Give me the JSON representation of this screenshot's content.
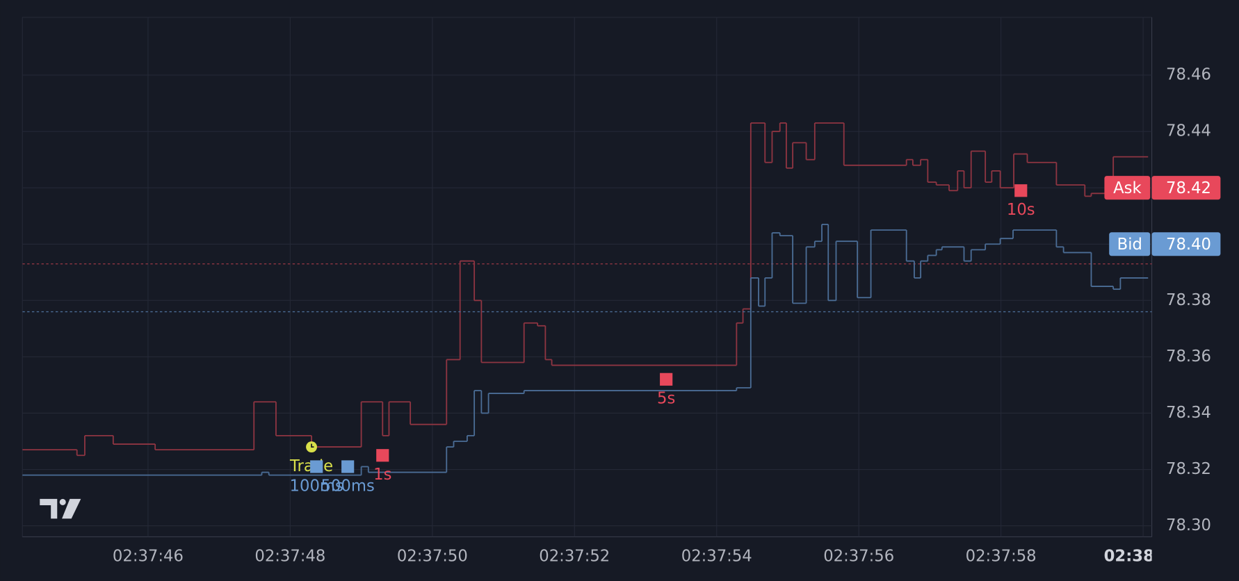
{
  "chart_data": {
    "type": "step",
    "xlim": [
      44.233,
      60.122
    ],
    "ylim": [
      78.2961,
      78.4805
    ],
    "xticks": [
      {
        "value": 46,
        "label": "02:37:46"
      },
      {
        "value": 48,
        "label": "02:37:48"
      },
      {
        "value": 50,
        "label": "02:37:50"
      },
      {
        "value": 52,
        "label": "02:37:52"
      },
      {
        "value": 54,
        "label": "02:37:54"
      },
      {
        "value": 56,
        "label": "02:37:56"
      },
      {
        "value": 58,
        "label": "02:37:58"
      },
      {
        "value": 60,
        "label": "02:38:00",
        "bold": true
      }
    ],
    "yticks": [
      {
        "value": 78.3,
        "label": "78.30"
      },
      78.32,
      78.34,
      78.36,
      78.38,
      {
        "value": 78.4,
        "label": "78.40"
      },
      78.42,
      78.44,
      78.46
    ],
    "grid": true,
    "series": [
      {
        "name": "Ask",
        "color": "#e8485b",
        "line_color": "#8f3542",
        "x": [
          44.23,
          45.0,
          45.11,
          45.51,
          46.1,
          47.49,
          47.8,
          48.3,
          49.0,
          49.3,
          49.39,
          49.69,
          50.2,
          50.39,
          50.59,
          50.69,
          51.29,
          51.48,
          51.59,
          51.68,
          54.28,
          54.37,
          54.48,
          54.68,
          54.78,
          54.89,
          54.98,
          55.07,
          55.26,
          55.38,
          55.79,
          56.67,
          56.76,
          56.87,
          56.97,
          57.09,
          57.27,
          57.39,
          57.48,
          57.58,
          57.78,
          57.87,
          57.99,
          58.18,
          58.37,
          58.78,
          59.18,
          59.27,
          59.58,
          60.07
        ],
        "values": [
          78.327,
          78.325,
          78.332,
          78.329,
          78.327,
          78.344,
          78.332,
          78.328,
          78.344,
          78.332,
          78.344,
          78.336,
          78.359,
          78.394,
          78.38,
          78.358,
          78.372,
          78.371,
          78.359,
          78.357,
          78.372,
          78.377,
          78.443,
          78.429,
          78.44,
          78.443,
          78.427,
          78.436,
          78.43,
          78.443,
          78.428,
          78.43,
          78.428,
          78.43,
          78.422,
          78.421,
          78.419,
          78.426,
          78.42,
          78.433,
          78.422,
          78.426,
          78.42,
          78.432,
          78.429,
          78.421,
          78.417,
          78.418,
          78.431,
          78.431
        ],
        "last_price": 78.42,
        "dashed_line": 78.393
      },
      {
        "name": "Bid",
        "color": "#6a9bd3",
        "line_color": "#4b6d96",
        "x": [
          44.23,
          47.6,
          47.7,
          49.0,
          49.1,
          50.2,
          50.3,
          50.49,
          50.59,
          50.69,
          50.79,
          51.29,
          54.28,
          54.48,
          54.59,
          54.68,
          54.78,
          54.89,
          55.07,
          55.26,
          55.38,
          55.48,
          55.57,
          55.68,
          55.98,
          56.17,
          56.67,
          56.78,
          56.87,
          56.97,
          57.09,
          57.17,
          57.48,
          57.58,
          57.78,
          57.99,
          58.17,
          58.78,
          58.88,
          59.27,
          59.58,
          59.68,
          60.07
        ],
        "values": [
          78.318,
          78.319,
          78.318,
          78.321,
          78.319,
          78.328,
          78.33,
          78.332,
          78.348,
          78.34,
          78.347,
          78.348,
          78.349,
          78.388,
          78.378,
          78.388,
          78.404,
          78.403,
          78.379,
          78.399,
          78.401,
          78.407,
          78.38,
          78.401,
          78.381,
          78.405,
          78.394,
          78.388,
          78.394,
          78.396,
          78.398,
          78.399,
          78.394,
          78.398,
          78.4,
          78.402,
          78.405,
          78.399,
          78.397,
          78.385,
          78.384,
          78.388,
          78.388
        ],
        "last_price": {
          "value": 78.4,
          "label": "78.40"
        },
        "dashed_line": 78.376
      }
    ],
    "markers": [
      {
        "text": "Trade",
        "color": "#d9e04a",
        "shape": "clock",
        "x": 48.3,
        "value": 78.328
      },
      {
        "text": "100ms",
        "color": "#6a9bd3",
        "shape": "square",
        "x": 48.37,
        "value": 78.321
      },
      {
        "text": "500ms",
        "color": "#6a9bd3",
        "shape": "square",
        "x": 48.81,
        "value": 78.321
      },
      {
        "text": "1s",
        "color": "#e8485b",
        "shape": "square",
        "x": 49.3,
        "value": 78.325
      },
      {
        "text": "5s",
        "color": "#e8485b",
        "shape": "square",
        "x": 53.29,
        "value": 78.352
      },
      {
        "text": "10s",
        "color": "#e8485b",
        "shape": "square",
        "x": 58.28,
        "value": 78.419
      }
    ]
  }
}
